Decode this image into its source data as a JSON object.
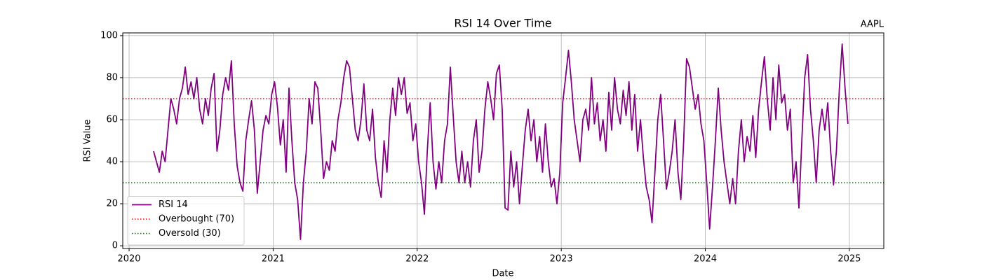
{
  "chart_data": {
    "type": "line",
    "title": "RSI 14 Over Time",
    "annotation": "AAPL",
    "xlabel": "Date",
    "ylabel": "RSI Value",
    "xlim": [
      2019.956,
      2025.239
    ],
    "xticks": [
      2020,
      2021,
      2022,
      2023,
      2024,
      2025
    ],
    "ylim": [
      -1.3,
      101.3
    ],
    "yticks": [
      0,
      20,
      40,
      60,
      80,
      100
    ],
    "grid": true,
    "legend": "lower left",
    "x": [
      2020.17,
      2020.19,
      2020.21,
      2020.23,
      2020.25,
      2020.27,
      2020.29,
      2020.31,
      2020.33,
      2020.35,
      2020.37,
      2020.39,
      2020.41,
      2020.43,
      2020.45,
      2020.47,
      2020.49,
      2020.51,
      2020.53,
      2020.55,
      2020.57,
      2020.59,
      2020.61,
      2020.63,
      2020.65,
      2020.67,
      2020.69,
      2020.71,
      2020.73,
      2020.75,
      2020.77,
      2020.79,
      2020.81,
      2020.83,
      2020.85,
      2020.87,
      2020.89,
      2020.91,
      2020.93,
      2020.95,
      2020.97,
      2020.99,
      2021.01,
      2021.03,
      2021.05,
      2021.07,
      2021.09,
      2021.11,
      2021.13,
      2021.15,
      2021.17,
      2021.19,
      2021.21,
      2021.23,
      2021.25,
      2021.27,
      2021.29,
      2021.31,
      2021.33,
      2021.35,
      2021.37,
      2021.39,
      2021.41,
      2021.43,
      2021.45,
      2021.47,
      2021.49,
      2021.51,
      2021.53,
      2021.55,
      2021.57,
      2021.59,
      2021.61,
      2021.63,
      2021.65,
      2021.67,
      2021.69,
      2021.71,
      2021.73,
      2021.75,
      2021.77,
      2021.79,
      2021.81,
      2021.83,
      2021.85,
      2021.87,
      2021.89,
      2021.91,
      2021.93,
      2021.95,
      2021.97,
      2021.99,
      2022.01,
      2022.03,
      2022.05,
      2022.07,
      2022.09,
      2022.11,
      2022.13,
      2022.15,
      2022.17,
      2022.19,
      2022.21,
      2022.23,
      2022.25,
      2022.27,
      2022.29,
      2022.31,
      2022.33,
      2022.35,
      2022.37,
      2022.39,
      2022.41,
      2022.43,
      2022.45,
      2022.47,
      2022.49,
      2022.51,
      2022.53,
      2022.55,
      2022.57,
      2022.59,
      2022.61,
      2022.63,
      2022.65,
      2022.67,
      2022.69,
      2022.71,
      2022.73,
      2022.75,
      2022.77,
      2022.79,
      2022.81,
      2022.83,
      2022.85,
      2022.87,
      2022.89,
      2022.91,
      2022.93,
      2022.95,
      2022.97,
      2022.99,
      2023.01,
      2023.03,
      2023.05,
      2023.07,
      2023.09,
      2023.11,
      2023.13,
      2023.15,
      2023.17,
      2023.19,
      2023.21,
      2023.23,
      2023.25,
      2023.27,
      2023.29,
      2023.31,
      2023.33,
      2023.35,
      2023.37,
      2023.39,
      2023.41,
      2023.43,
      2023.45,
      2023.47,
      2023.49,
      2023.51,
      2023.53,
      2023.55,
      2023.57,
      2023.59,
      2023.61,
      2023.63,
      2023.65,
      2023.67,
      2023.69,
      2023.71,
      2023.73,
      2023.75,
      2023.77,
      2023.79,
      2023.81,
      2023.83,
      2023.85,
      2023.87,
      2023.89,
      2023.91,
      2023.93,
      2023.95,
      2023.97,
      2023.99,
      2024.01,
      2024.03,
      2024.05,
      2024.07,
      2024.09,
      2024.11,
      2024.13,
      2024.15,
      2024.17,
      2024.19,
      2024.21,
      2024.23,
      2024.25,
      2024.27,
      2024.29,
      2024.31,
      2024.33,
      2024.35,
      2024.37,
      2024.39,
      2024.41,
      2024.43,
      2024.45,
      2024.47,
      2024.49,
      2024.51,
      2024.53,
      2024.55,
      2024.57,
      2024.59,
      2024.61,
      2024.63,
      2024.65,
      2024.67,
      2024.69,
      2024.71,
      2024.73,
      2024.75,
      2024.77,
      2024.79,
      2024.81,
      2024.83,
      2024.85,
      2024.87,
      2024.89,
      2024.91,
      2024.93,
      2024.95,
      2024.97,
      2024.99
    ],
    "series": [
      {
        "name": "RSI 14",
        "color": "#800080",
        "values": [
          45,
          40,
          35,
          45,
          40,
          55,
          70,
          65,
          58,
          70,
          75,
          85,
          72,
          78,
          70,
          80,
          65,
          58,
          70,
          62,
          75,
          82,
          45,
          55,
          72,
          80,
          74,
          88,
          58,
          38,
          30,
          26,
          50,
          60,
          69,
          55,
          25,
          40,
          55,
          62,
          58,
          72,
          78,
          66,
          48,
          60,
          35,
          75,
          50,
          30,
          22,
          3,
          30,
          45,
          70,
          58,
          78,
          75,
          55,
          32,
          40,
          36,
          50,
          45,
          60,
          68,
          80,
          88,
          85,
          70,
          55,
          50,
          60,
          77,
          55,
          50,
          65,
          42,
          30,
          23,
          50,
          35,
          60,
          75,
          62,
          80,
          72,
          80,
          63,
          68,
          50,
          58,
          40,
          30,
          15,
          45,
          68,
          40,
          27,
          40,
          30,
          50,
          58,
          85,
          62,
          40,
          30,
          45,
          30,
          40,
          28,
          50,
          60,
          35,
          45,
          65,
          78,
          70,
          60,
          82,
          86,
          65,
          18,
          17,
          45,
          28,
          40,
          20,
          38,
          55,
          65,
          50,
          60,
          40,
          52,
          35,
          58,
          40,
          28,
          32,
          20,
          35,
          68,
          80,
          93,
          78,
          60,
          50,
          40,
          60,
          65,
          55,
          80,
          58,
          68,
          50,
          60,
          45,
          73,
          55,
          80,
          65,
          58,
          74,
          62,
          78,
          55,
          72,
          45,
          60,
          42,
          28,
          22,
          11,
          35,
          60,
          72,
          50,
          27,
          35,
          45,
          60,
          35,
          22,
          50,
          89,
          85,
          75,
          65,
          72,
          58,
          50,
          30,
          8,
          28,
          50,
          75,
          55,
          40,
          30,
          20,
          32,
          20,
          45,
          60,
          40,
          52,
          45,
          62,
          42,
          65,
          78,
          90,
          70,
          55,
          80,
          60,
          86,
          68,
          72,
          55,
          65,
          30,
          40,
          18,
          50,
          80,
          91,
          65,
          50,
          30,
          55,
          65,
          55,
          68,
          45,
          29,
          45,
          74,
          96,
          75,
          58
        ]
      }
    ],
    "hlines": [
      {
        "name": "Overbought (70)",
        "value": 70,
        "color": "#ff0000"
      },
      {
        "name": "Oversold (30)",
        "value": 30,
        "color": "#008000"
      }
    ]
  }
}
